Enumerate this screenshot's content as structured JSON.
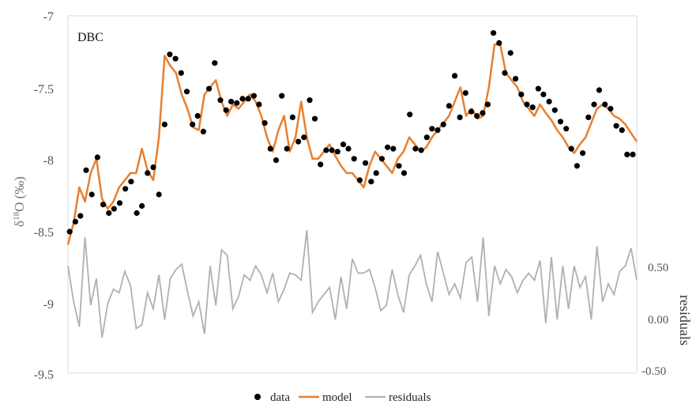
{
  "chart_data": {
    "type": "line",
    "title": "",
    "panel_label": "DBC",
    "ylabel": "δ18O (‰)",
    "ylabel_parts": {
      "delta": "δ",
      "superscript": "18",
      "rest": "O (‰)"
    },
    "y2label": "residuals",
    "ylim": [
      -9.5,
      -7
    ],
    "y_ticks": [
      "-7",
      "-7.5",
      "-8",
      "-8.5",
      "-9",
      "-9.5"
    ],
    "y2lim": [
      -0.5,
      1.5
    ],
    "y2_ticks": [
      "0.50",
      "0.00",
      "-0.50"
    ],
    "grid": false,
    "legend": {
      "position": "bottom",
      "items": [
        "data",
        "model",
        "residuals"
      ]
    },
    "x_index": "relative position along record (0–1, no axis labels shown)",
    "colors": {
      "data": "#000000",
      "model": "#e87f2e",
      "residuals": "#b0b0b0",
      "frame": "#d9d9d9"
    },
    "series": [
      {
        "name": "data",
        "kind": "scatter",
        "x": [
          0.003,
          0.013,
          0.022,
          0.032,
          0.042,
          0.052,
          0.062,
          0.072,
          0.081,
          0.091,
          0.101,
          0.111,
          0.121,
          0.13,
          0.14,
          0.15,
          0.16,
          0.17,
          0.179,
          0.189,
          0.199,
          0.209,
          0.219,
          0.228,
          0.238,
          0.248,
          0.258,
          0.268,
          0.278,
          0.287,
          0.297,
          0.307,
          0.317,
          0.327,
          0.336,
          0.346,
          0.356,
          0.366,
          0.376,
          0.385,
          0.395,
          0.405,
          0.415,
          0.425,
          0.434,
          0.444,
          0.454,
          0.464,
          0.474,
          0.484,
          0.493,
          0.503,
          0.513,
          0.523,
          0.533,
          0.542,
          0.552,
          0.562,
          0.572,
          0.582,
          0.591,
          0.601,
          0.611,
          0.621,
          0.631,
          0.64,
          0.65,
          0.66,
          0.67,
          0.68,
          0.689,
          0.699,
          0.709,
          0.719,
          0.729,
          0.738,
          0.748,
          0.758,
          0.768,
          0.778,
          0.787,
          0.797,
          0.807,
          0.817,
          0.827,
          0.836,
          0.846,
          0.856,
          0.866,
          0.876,
          0.885,
          0.895,
          0.905,
          0.915,
          0.925,
          0.934,
          0.944,
          0.954,
          0.964,
          0.974,
          0.983,
          0.993
        ],
        "y": [
          -8.51,
          -8.44,
          -8.4,
          -8.08,
          -8.25,
          -7.99,
          -8.32,
          -8.38,
          -8.35,
          -8.31,
          -8.21,
          -8.16,
          -8.38,
          -8.33,
          -8.1,
          -8.06,
          -8.25,
          -7.76,
          -7.27,
          -7.3,
          -7.4,
          -7.53,
          -7.76,
          -7.7,
          -7.81,
          -7.51,
          -7.33,
          -7.59,
          -7.66,
          -7.6,
          -7.61,
          -7.58,
          -7.58,
          -7.56,
          -7.62,
          -7.75,
          -7.93,
          -8.01,
          -7.56,
          -7.93,
          -7.71,
          -7.88,
          -7.85,
          -7.59,
          -7.72,
          -8.04,
          -7.94,
          -7.94,
          -7.95,
          -7.9,
          -7.93,
          -8.0,
          -8.15,
          -8.03,
          -8.16,
          -8.1,
          -8.0,
          -7.92,
          -7.93,
          -8.05,
          -8.1,
          -7.69,
          -7.93,
          -7.94,
          -7.85,
          -7.79,
          -7.8,
          -7.76,
          -7.63,
          -7.42,
          -7.71,
          -7.54,
          -7.67,
          -7.7,
          -7.68,
          -7.62,
          -7.12,
          -7.19,
          -7.4,
          -7.26,
          -7.44,
          -7.55,
          -7.62,
          -7.64,
          -7.51,
          -7.55,
          -7.6,
          -7.66,
          -7.74,
          -7.79,
          -7.93,
          -8.05,
          -7.96,
          -7.71,
          -7.62,
          -7.52,
          -7.62,
          -7.65,
          -7.77,
          -7.8,
          -7.97,
          -7.97
        ]
      },
      {
        "name": "model",
        "kind": "line",
        "x": [
          0.0,
          0.01,
          0.02,
          0.03,
          0.04,
          0.05,
          0.06,
          0.07,
          0.08,
          0.09,
          0.1,
          0.11,
          0.12,
          0.13,
          0.14,
          0.15,
          0.16,
          0.17,
          0.18,
          0.19,
          0.2,
          0.21,
          0.22,
          0.23,
          0.24,
          0.25,
          0.26,
          0.27,
          0.28,
          0.29,
          0.3,
          0.31,
          0.32,
          0.33,
          0.34,
          0.35,
          0.36,
          0.37,
          0.38,
          0.39,
          0.4,
          0.41,
          0.42,
          0.43,
          0.44,
          0.45,
          0.46,
          0.47,
          0.48,
          0.49,
          0.5,
          0.51,
          0.52,
          0.53,
          0.54,
          0.55,
          0.56,
          0.57,
          0.58,
          0.59,
          0.6,
          0.61,
          0.62,
          0.63,
          0.64,
          0.65,
          0.66,
          0.67,
          0.68,
          0.69,
          0.7,
          0.71,
          0.72,
          0.73,
          0.74,
          0.75,
          0.76,
          0.77,
          0.78,
          0.79,
          0.8,
          0.81,
          0.82,
          0.83,
          0.84,
          0.85,
          0.86,
          0.87,
          0.88,
          0.89,
          0.9,
          0.91,
          0.92,
          0.93,
          0.94,
          0.95,
          0.96,
          0.97,
          0.98,
          0.99,
          1.0
        ],
        "y": [
          -8.6,
          -8.45,
          -8.2,
          -8.3,
          -8.1,
          -8.0,
          -8.28,
          -8.35,
          -8.3,
          -8.2,
          -8.15,
          -8.1,
          -8.1,
          -7.93,
          -8.08,
          -8.15,
          -7.85,
          -7.28,
          -7.35,
          -7.4,
          -7.55,
          -7.65,
          -7.78,
          -7.8,
          -7.55,
          -7.5,
          -7.45,
          -7.6,
          -7.7,
          -7.62,
          -7.65,
          -7.6,
          -7.55,
          -7.6,
          -7.7,
          -7.85,
          -7.95,
          -7.8,
          -7.7,
          -7.95,
          -7.85,
          -7.6,
          -7.85,
          -8.0,
          -8.0,
          -7.95,
          -7.9,
          -7.98,
          -8.05,
          -8.1,
          -8.1,
          -8.15,
          -8.2,
          -8.05,
          -7.95,
          -8.0,
          -8.05,
          -8.1,
          -8.0,
          -7.95,
          -7.85,
          -7.9,
          -7.95,
          -7.92,
          -7.85,
          -7.8,
          -7.75,
          -7.7,
          -7.6,
          -7.5,
          -7.7,
          -7.65,
          -7.72,
          -7.7,
          -7.5,
          -7.2,
          -7.2,
          -7.4,
          -7.45,
          -7.5,
          -7.6,
          -7.65,
          -7.7,
          -7.62,
          -7.68,
          -7.73,
          -7.8,
          -7.85,
          -7.92,
          -7.96,
          -7.9,
          -7.85,
          -7.75,
          -7.65,
          -7.62,
          -7.65,
          -7.7,
          -7.72,
          -7.76,
          -7.82,
          -7.88
        ]
      },
      {
        "name": "residuals",
        "kind": "line",
        "axis": "right",
        "x": [
          0.0,
          0.01,
          0.02,
          0.03,
          0.04,
          0.05,
          0.06,
          0.07,
          0.08,
          0.09,
          0.1,
          0.11,
          0.12,
          0.13,
          0.14,
          0.15,
          0.16,
          0.17,
          0.18,
          0.19,
          0.2,
          0.21,
          0.22,
          0.23,
          0.24,
          0.25,
          0.26,
          0.27,
          0.28,
          0.29,
          0.3,
          0.31,
          0.32,
          0.33,
          0.34,
          0.35,
          0.36,
          0.37,
          0.38,
          0.39,
          0.4,
          0.41,
          0.42,
          0.43,
          0.44,
          0.45,
          0.46,
          0.47,
          0.48,
          0.49,
          0.5,
          0.51,
          0.52,
          0.53,
          0.54,
          0.55,
          0.56,
          0.57,
          0.58,
          0.59,
          0.6,
          0.61,
          0.62,
          0.63,
          0.64,
          0.65,
          0.66,
          0.67,
          0.68,
          0.69,
          0.7,
          0.71,
          0.72,
          0.73,
          0.74,
          0.75,
          0.76,
          0.77,
          0.78,
          0.79,
          0.8,
          0.81,
          0.82,
          0.83,
          0.84,
          0.85,
          0.86,
          0.87,
          0.88,
          0.89,
          0.9,
          0.91,
          0.92,
          0.93,
          0.94,
          0.95,
          0.96,
          0.97,
          0.98,
          0.99,
          1.0
        ],
        "y": [
          0.1,
          -0.1,
          -0.24,
          0.26,
          -0.12,
          0.03,
          -0.3,
          -0.11,
          -0.03,
          -0.05,
          0.07,
          -0.01,
          -0.25,
          -0.23,
          -0.05,
          -0.14,
          0.05,
          -0.2,
          0.03,
          0.08,
          0.11,
          -0.04,
          -0.18,
          -0.1,
          -0.28,
          0.1,
          -0.12,
          0.19,
          0.16,
          -0.14,
          -0.07,
          0.05,
          0.02,
          0.1,
          0.05,
          -0.05,
          0.06,
          -0.1,
          -0.03,
          0.06,
          0.05,
          0.02,
          0.3,
          -0.16,
          -0.1,
          -0.06,
          -0.02,
          -0.2,
          0.04,
          -0.14,
          0.14,
          0.06,
          0.06,
          0.08,
          -0.02,
          -0.15,
          -0.12,
          0.08,
          -0.06,
          -0.16,
          0.05,
          0.1,
          0.16,
          0.0,
          -0.1,
          0.18,
          0.06,
          -0.06,
          0.0,
          -0.08,
          0.12,
          0.15,
          -0.1,
          0.26,
          -0.18,
          0.1,
          0.0,
          0.08,
          0.04,
          -0.05,
          0.02,
          0.06,
          0.02,
          0.13,
          -0.22,
          0.15,
          -0.2,
          0.1,
          -0.14,
          0.1,
          -0.02,
          0.04,
          -0.2,
          0.21,
          -0.1,
          0.0,
          -0.06,
          0.07,
          0.1,
          0.2,
          0.02
        ]
      }
    ]
  }
}
